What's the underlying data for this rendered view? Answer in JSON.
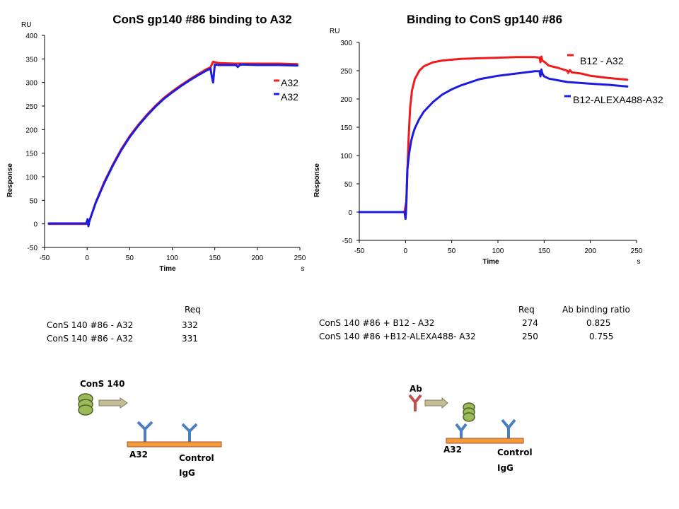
{
  "chart_data": [
    {
      "type": "line",
      "title": "ConS gp140 #86 binding to A32",
      "xlabel": "Time",
      "x_unit": "s",
      "ylabel": "Response",
      "y_unit": "RU",
      "xlim": [
        -50,
        250
      ],
      "ylim": [
        -50,
        400
      ],
      "x_ticks": [
        -50,
        0,
        50,
        100,
        150,
        200,
        250
      ],
      "y_ticks": [
        -50,
        0,
        50,
        100,
        150,
        200,
        250,
        300,
        350,
        400
      ],
      "legend_position": "right",
      "grid": false,
      "series": [
        {
          "name": "A32",
          "color": "#ee1c1c",
          "x": [
            -45,
            -1,
            2,
            10,
            20,
            30,
            40,
            50,
            60,
            70,
            80,
            90,
            100,
            110,
            120,
            130,
            140,
            145,
            148,
            155,
            175,
            200,
            225,
            247
          ],
          "y": [
            0,
            0,
            2,
            45,
            88,
            125,
            158,
            186,
            210,
            231,
            250,
            267,
            281,
            294,
            306,
            317,
            328,
            332,
            344,
            341,
            340,
            340,
            340,
            339
          ]
        },
        {
          "name": "A32",
          "color": "#1c1ce0",
          "x": [
            -45,
            -1,
            0.5,
            1.5,
            2.5,
            10,
            20,
            30,
            40,
            50,
            60,
            70,
            80,
            90,
            100,
            110,
            120,
            130,
            140,
            145,
            146.5,
            148,
            150,
            155,
            175,
            177,
            180,
            200,
            225,
            247
          ],
          "y": [
            1,
            1,
            10,
            -5,
            5,
            44,
            86,
            123,
            156,
            184,
            208,
            229,
            248,
            265,
            279,
            292,
            304,
            315,
            325,
            330,
            312,
            300,
            338,
            337,
            337,
            333,
            338,
            337,
            337,
            336
          ]
        }
      ]
    },
    {
      "type": "line",
      "title": "Binding to ConS gp140 #86",
      "xlabel": "Time",
      "x_unit": "s",
      "ylabel": "Response",
      "y_unit": "RU",
      "xlim": [
        -50,
        250
      ],
      "ylim": [
        -50,
        300
      ],
      "x_ticks": [
        -50,
        0,
        50,
        100,
        150,
        200,
        250
      ],
      "y_ticks": [
        -50,
        0,
        50,
        100,
        150,
        200,
        250,
        300
      ],
      "legend_position": "right",
      "grid": false,
      "series": [
        {
          "name": "B12 - A32",
          "color": "#ee1c1c",
          "x": [
            -50,
            -3,
            -1,
            1,
            3,
            5,
            7,
            10,
            15,
            20,
            30,
            40,
            60,
            80,
            100,
            120,
            140,
            145,
            146,
            147,
            148,
            150,
            155,
            165,
            175,
            176,
            178,
            180,
            190,
            200,
            220,
            240
          ],
          "y": [
            0,
            0,
            1,
            20,
            120,
            185,
            215,
            235,
            250,
            258,
            265,
            268,
            271,
            272,
            273,
            274,
            274,
            273,
            265,
            275,
            268,
            266,
            259,
            255,
            250,
            246,
            251,
            247,
            245,
            241,
            237,
            234
          ]
        },
        {
          "name": "B12-ALEXA488-A32",
          "color": "#1c1ce0",
          "x": [
            -50,
            -3,
            -1,
            0,
            0.5,
            1,
            2,
            4,
            6,
            8,
            10,
            15,
            20,
            30,
            40,
            50,
            60,
            80,
            100,
            120,
            140,
            145,
            146,
            147,
            148,
            150,
            155,
            165,
            175,
            200,
            220,
            240
          ],
          "y": [
            0,
            0,
            0,
            -12,
            0,
            20,
            75,
            105,
            125,
            138,
            148,
            165,
            178,
            195,
            208,
            217,
            224,
            235,
            241,
            245,
            249,
            249,
            240,
            252,
            245,
            240,
            236,
            233,
            230,
            227,
            225,
            222
          ]
        }
      ]
    }
  ],
  "tables": {
    "left": {
      "header": "Req",
      "rows": [
        {
          "label": "ConS 140 #86 - A32",
          "req": "332"
        },
        {
          "label": "ConS 140 #86 - A32",
          "req": "331"
        }
      ]
    },
    "right": {
      "header_req": "Req",
      "header_ratio": "Ab binding ratio",
      "rows": [
        {
          "label": "ConS 140 #86 + B12 - A32",
          "req": "274",
          "ratio": "0.825"
        },
        {
          "label": "ConS 140 #86 +B12-ALEXA488- A32",
          "req": "250",
          "ratio": "0.755"
        }
      ]
    }
  },
  "diagrams": {
    "left": {
      "analyte_label": "ConS 140",
      "capture_label": "A32",
      "control_label_1": "Control",
      "control_label_2": "IgG"
    },
    "right": {
      "analyte_label": "Ab",
      "capture_label": "A32",
      "control_label_1": "Control",
      "control_label_2": "IgG"
    }
  },
  "colors": {
    "red": "#ee1c1c",
    "blue": "#1c1ce0",
    "antibody_blue": "#4a7fc1",
    "antibody_red": "#c0504d",
    "surface_fill": "#f59a3a",
    "surface_stroke": "#a0522d",
    "ball_fill": "#9bbb59",
    "ball_stroke": "#4f6228",
    "arrow_fill": "#c4bd97",
    "arrow_stroke": "#7f7a5c"
  }
}
